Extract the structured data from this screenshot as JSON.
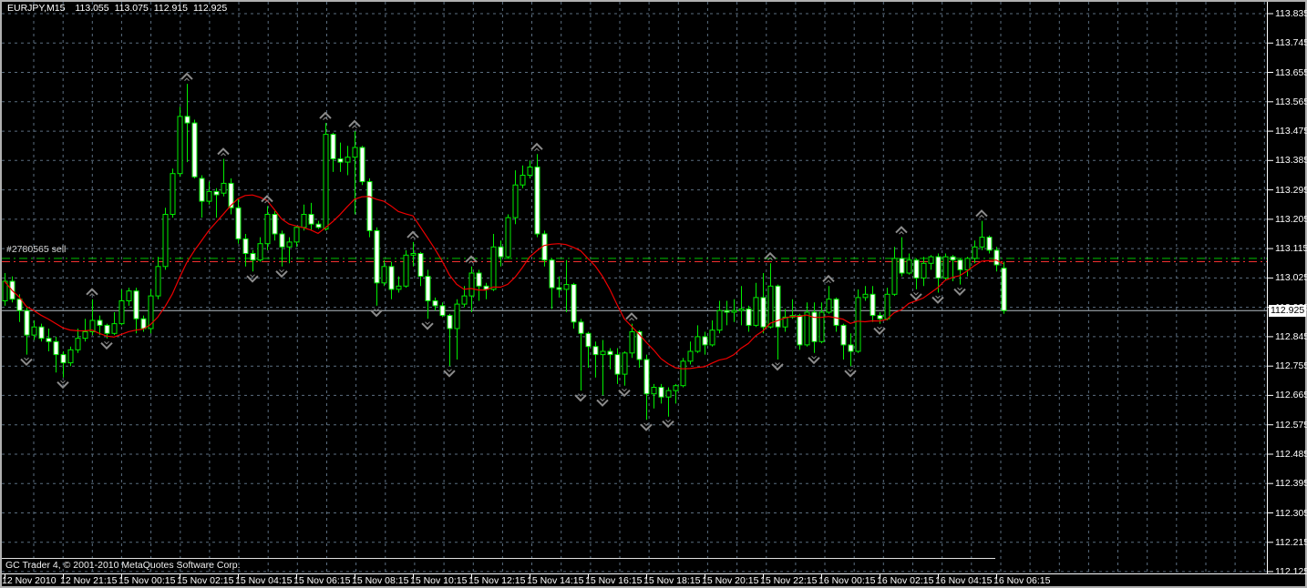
{
  "header": {
    "symbol": "EURJPY,M15",
    "open": "113.055",
    "high": "113.075",
    "low": "112.915",
    "close": "112.925"
  },
  "order_line": {
    "label": "#2780565 sell",
    "tp_price": 113.085,
    "entry_price": 113.075
  },
  "bid": {
    "price": 112.925,
    "tag": "112.925"
  },
  "copyright": "GC Trader 4, © 2001-2010 MetaQuotes Software Corp.",
  "price_axis": [
    "113.835",
    "113.745",
    "113.655",
    "113.565",
    "113.475",
    "113.385",
    "113.295",
    "113.205",
    "113.115",
    "113.025",
    "112.935",
    "112.845",
    "112.755",
    "112.665",
    "112.575",
    "112.485",
    "112.395",
    "112.305",
    "112.215",
    "112.125"
  ],
  "time_axis": [
    "12 Nov 2010",
    "12 Nov 21:15",
    "15 Nov 00:15",
    "15 Nov 02:15",
    "15 Nov 04:15",
    "15 Nov 06:15",
    "15 Nov 08:15",
    "15 Nov 10:15",
    "15 Nov 12:15",
    "15 Nov 14:15",
    "15 Nov 16:15",
    "15 Nov 18:15",
    "15 Nov 20:15",
    "15 Nov 22:15",
    "16 Nov 00:15",
    "16 Nov 02:15",
    "16 Nov 04:15",
    "16 Nov 06:15"
  ],
  "colors": {
    "background": "#000000",
    "grid": "#5b6e80",
    "candle_outline": "#00ee00",
    "bull_fill": "#000000",
    "bear_fill": "#ffffff",
    "ma": "#ee0000",
    "fractal": "#8c8c8c",
    "bid_line": "#b4bdc4",
    "tp_line": "#00c000",
    "entry_line": "#f03030",
    "axis_text": "#ffffff",
    "frame_line": "#ffffff",
    "window_border": "#b0b0b0"
  },
  "chart_data": {
    "type": "candlestick",
    "symbol": "EURJPY",
    "timeframe": "M15",
    "title": "EURJPY,M15 113.055 113.075 112.915 112.925",
    "ylim": [
      112.125,
      113.835
    ],
    "y_grid_step": 0.09,
    "x_tick_labels": [
      "12 Nov 2010",
      "12 Nov 21:15",
      "15 Nov 00:15",
      "15 Nov 02:15",
      "15 Nov 04:15",
      "15 Nov 06:15",
      "15 Nov 08:15",
      "15 Nov 10:15",
      "15 Nov 12:15",
      "15 Nov 14:15",
      "15 Nov 16:15",
      "15 Nov 18:15",
      "15 Nov 20:15",
      "15 Nov 22:15",
      "16 Nov 00:15",
      "16 Nov 02:15",
      "16 Nov 04:15",
      "16 Nov 06:15"
    ],
    "bars_per_x_tick": 8,
    "current_bid": 112.925,
    "overlays": [
      {
        "name": "moving-average",
        "period": 13,
        "style": "solid",
        "color": "#ee0000"
      },
      {
        "name": "fractals",
        "style": "arrows",
        "color": "#8c8c8c"
      },
      {
        "name": "order-sell",
        "label": "#2780565 sell",
        "lines": [
          {
            "price": 113.085,
            "style": "dash-dot",
            "color": "#00c000"
          },
          {
            "price": 113.075,
            "style": "dash-dot",
            "color": "#f03030"
          }
        ]
      },
      {
        "name": "bid-line",
        "price": 112.925,
        "style": "solid",
        "color": "#b4bdc4"
      }
    ],
    "candles": [
      [
        112.955,
        113.04,
        112.94,
        113.015
      ],
      [
        113.015,
        113.03,
        112.95,
        112.96
      ],
      [
        112.96,
        112.975,
        112.89,
        112.925
      ],
      [
        112.925,
        112.935,
        112.79,
        112.85
      ],
      [
        112.85,
        112.895,
        112.835,
        112.875
      ],
      [
        112.875,
        112.885,
        112.83,
        112.84
      ],
      [
        112.84,
        112.87,
        112.8,
        112.83
      ],
      [
        112.83,
        112.845,
        112.735,
        112.79
      ],
      [
        112.79,
        112.8,
        112.72,
        112.765
      ],
      [
        112.765,
        112.815,
        112.755,
        112.805
      ],
      [
        112.805,
        112.87,
        112.795,
        112.84
      ],
      [
        112.84,
        112.9,
        112.83,
        112.86
      ],
      [
        112.86,
        112.96,
        112.85,
        112.895
      ],
      [
        112.895,
        112.91,
        112.85,
        112.88
      ],
      [
        112.88,
        112.885,
        112.84,
        112.855
      ],
      [
        112.855,
        112.92,
        112.85,
        112.885
      ],
      [
        112.885,
        112.99,
        112.88,
        112.955
      ],
      [
        112.955,
        112.995,
        112.94,
        112.985
      ],
      [
        112.985,
        112.995,
        112.855,
        112.9
      ],
      [
        112.9,
        112.91,
        112.86,
        112.87
      ],
      [
        112.87,
        112.99,
        112.855,
        112.97
      ],
      [
        112.97,
        113.09,
        112.96,
        113.06
      ],
      [
        113.06,
        113.24,
        113.05,
        113.22
      ],
      [
        113.22,
        113.36,
        113.21,
        113.345
      ],
      [
        113.345,
        113.55,
        113.335,
        113.52
      ],
      [
        113.52,
        113.62,
        113.38,
        113.5
      ],
      [
        113.5,
        113.51,
        113.33,
        113.335
      ],
      [
        113.33,
        113.34,
        113.21,
        113.26
      ],
      [
        113.26,
        113.32,
        113.25,
        113.29
      ],
      [
        113.29,
        113.3,
        113.21,
        113.28
      ],
      [
        113.285,
        113.39,
        113.275,
        113.315
      ],
      [
        113.315,
        113.33,
        113.22,
        113.24
      ],
      [
        113.24,
        113.27,
        113.13,
        113.145
      ],
      [
        113.145,
        113.16,
        113.06,
        113.1
      ],
      [
        113.1,
        113.11,
        113.045,
        113.08
      ],
      [
        113.08,
        113.15,
        113.075,
        113.13
      ],
      [
        113.13,
        113.245,
        113.11,
        113.22
      ],
      [
        113.22,
        113.23,
        113.14,
        113.16
      ],
      [
        113.16,
        113.17,
        113.06,
        113.12
      ],
      [
        113.12,
        113.15,
        113.07,
        113.135
      ],
      [
        113.135,
        113.185,
        113.12,
        113.18
      ],
      [
        113.18,
        113.25,
        113.17,
        113.22
      ],
      [
        113.22,
        113.255,
        113.17,
        113.19
      ],
      [
        113.19,
        113.2,
        113.175,
        113.18
      ],
      [
        113.175,
        113.5,
        113.17,
        113.465
      ],
      [
        113.465,
        113.47,
        113.35,
        113.39
      ],
      [
        113.39,
        113.44,
        113.35,
        113.38
      ],
      [
        113.38,
        113.43,
        113.34,
        113.395
      ],
      [
        113.395,
        113.475,
        113.22,
        113.425
      ],
      [
        113.425,
        113.43,
        113.31,
        113.32
      ],
      [
        113.32,
        113.33,
        113.15,
        113.17
      ],
      [
        113.17,
        113.18,
        112.94,
        113.01
      ],
      [
        113.01,
        113.08,
        113.0,
        113.06
      ],
      [
        113.06,
        113.075,
        112.96,
        112.99
      ],
      [
        112.99,
        113.03,
        112.98,
        113.0
      ],
      [
        113.0,
        113.11,
        112.995,
        113.095
      ],
      [
        113.095,
        113.135,
        113.06,
        113.1
      ],
      [
        113.1,
        113.105,
        113.0,
        113.03
      ],
      [
        113.03,
        113.05,
        112.9,
        112.955
      ],
      [
        112.955,
        112.965,
        112.925,
        112.94
      ],
      [
        112.94,
        112.95,
        112.905,
        112.91
      ],
      [
        112.91,
        112.915,
        112.755,
        112.87
      ],
      [
        112.87,
        112.96,
        112.775,
        112.945
      ],
      [
        112.945,
        113.0,
        112.935,
        112.97
      ],
      [
        112.97,
        113.06,
        112.92,
        113.04
      ],
      [
        113.04,
        113.05,
        112.955,
        113.0
      ],
      [
        113.0,
        113.01,
        112.96,
        112.99
      ],
      [
        112.99,
        113.16,
        112.985,
        113.12
      ],
      [
        113.12,
        113.14,
        113.06,
        113.09
      ],
      [
        113.09,
        113.22,
        113.085,
        113.21
      ],
      [
        113.21,
        113.355,
        113.19,
        113.31
      ],
      [
        113.31,
        113.37,
        113.3,
        113.34
      ],
      [
        113.34,
        113.385,
        113.33,
        113.365
      ],
      [
        113.365,
        113.405,
        113.15,
        113.16
      ],
      [
        113.16,
        113.17,
        113.06,
        113.08
      ],
      [
        113.08,
        113.085,
        112.93,
        112.995
      ],
      [
        112.995,
        113.03,
        112.965,
        112.99
      ],
      [
        112.99,
        113.08,
        112.92,
        113.005
      ],
      [
        113.005,
        113.01,
        112.87,
        112.89
      ],
      [
        112.89,
        112.9,
        112.68,
        112.855
      ],
      [
        112.855,
        112.86,
        112.75,
        112.815
      ],
      [
        112.815,
        112.83,
        112.72,
        112.79
      ],
      [
        112.79,
        112.835,
        112.665,
        112.8
      ],
      [
        112.8,
        112.81,
        112.745,
        112.79
      ],
      [
        112.79,
        112.81,
        112.7,
        112.73
      ],
      [
        112.73,
        112.8,
        112.695,
        112.795
      ],
      [
        112.795,
        112.885,
        112.78,
        112.86
      ],
      [
        112.86,
        112.865,
        112.75,
        112.775
      ],
      [
        112.775,
        112.79,
        112.59,
        112.67
      ],
      [
        112.67,
        112.7,
        112.625,
        112.69
      ],
      [
        112.69,
        112.7,
        112.64,
        112.66
      ],
      [
        112.66,
        112.69,
        112.6,
        112.68
      ],
      [
        112.68,
        112.7,
        112.64,
        112.695
      ],
      [
        112.695,
        112.78,
        112.69,
        112.77
      ],
      [
        112.77,
        112.83,
        112.76,
        112.8
      ],
      [
        112.8,
        112.88,
        112.795,
        112.845
      ],
      [
        112.845,
        112.86,
        112.79,
        112.82
      ],
      [
        112.82,
        112.895,
        112.815,
        112.865
      ],
      [
        112.865,
        112.955,
        112.855,
        112.925
      ],
      [
        112.925,
        112.955,
        112.88,
        112.92
      ],
      [
        112.92,
        112.96,
        112.89,
        112.925
      ],
      [
        112.925,
        113.0,
        112.88,
        112.93
      ],
      [
        112.93,
        112.94,
        112.86,
        112.88
      ],
      [
        112.88,
        113.01,
        112.875,
        112.965
      ],
      [
        112.965,
        113.04,
        112.855,
        112.875
      ],
      [
        112.875,
        113.07,
        112.87,
        113.0
      ],
      [
        113.0,
        113.005,
        112.775,
        112.875
      ],
      [
        112.875,
        112.93,
        112.86,
        112.905
      ],
      [
        112.905,
        112.96,
        112.9,
        112.91
      ],
      [
        112.91,
        112.915,
        112.805,
        112.82
      ],
      [
        112.82,
        112.95,
        112.815,
        112.92
      ],
      [
        112.92,
        112.95,
        112.795,
        112.83
      ],
      [
        112.83,
        112.95,
        112.825,
        112.92
      ],
      [
        112.92,
        113.0,
        112.915,
        112.96
      ],
      [
        112.96,
        112.965,
        112.86,
        112.88
      ],
      [
        112.88,
        112.885,
        112.775,
        112.82
      ],
      [
        112.82,
        112.855,
        112.755,
        112.8
      ],
      [
        112.8,
        112.99,
        112.795,
        112.965
      ],
      [
        112.965,
        113.0,
        112.955,
        112.975
      ],
      [
        112.975,
        113.0,
        112.89,
        112.91
      ],
      [
        112.91,
        112.92,
        112.885,
        112.9
      ],
      [
        112.9,
        112.995,
        112.895,
        112.975
      ],
      [
        112.975,
        113.12,
        112.97,
        113.085
      ],
      [
        113.085,
        113.15,
        113.03,
        113.04
      ],
      [
        113.04,
        113.1,
        113.035,
        113.08
      ],
      [
        113.08,
        113.085,
        112.99,
        113.025
      ],
      [
        113.025,
        113.09,
        113.0,
        113.07
      ],
      [
        113.07,
        113.095,
        113.05,
        113.09
      ],
      [
        113.09,
        113.1,
        112.98,
        113.025
      ],
      [
        113.025,
        113.1,
        113.02,
        113.09
      ],
      [
        113.09,
        113.095,
        113.015,
        113.08
      ],
      [
        113.08,
        113.085,
        113.005,
        113.05
      ],
      [
        113.05,
        113.09,
        113.03,
        113.085
      ],
      [
        113.085,
        113.14,
        113.07,
        113.12
      ],
      [
        113.12,
        113.2,
        113.11,
        113.15
      ],
      [
        113.15,
        113.155,
        113.1,
        113.11
      ],
      [
        113.11,
        113.12,
        113.045,
        113.065
      ],
      [
        113.055,
        113.075,
        112.915,
        112.925
      ]
    ]
  }
}
